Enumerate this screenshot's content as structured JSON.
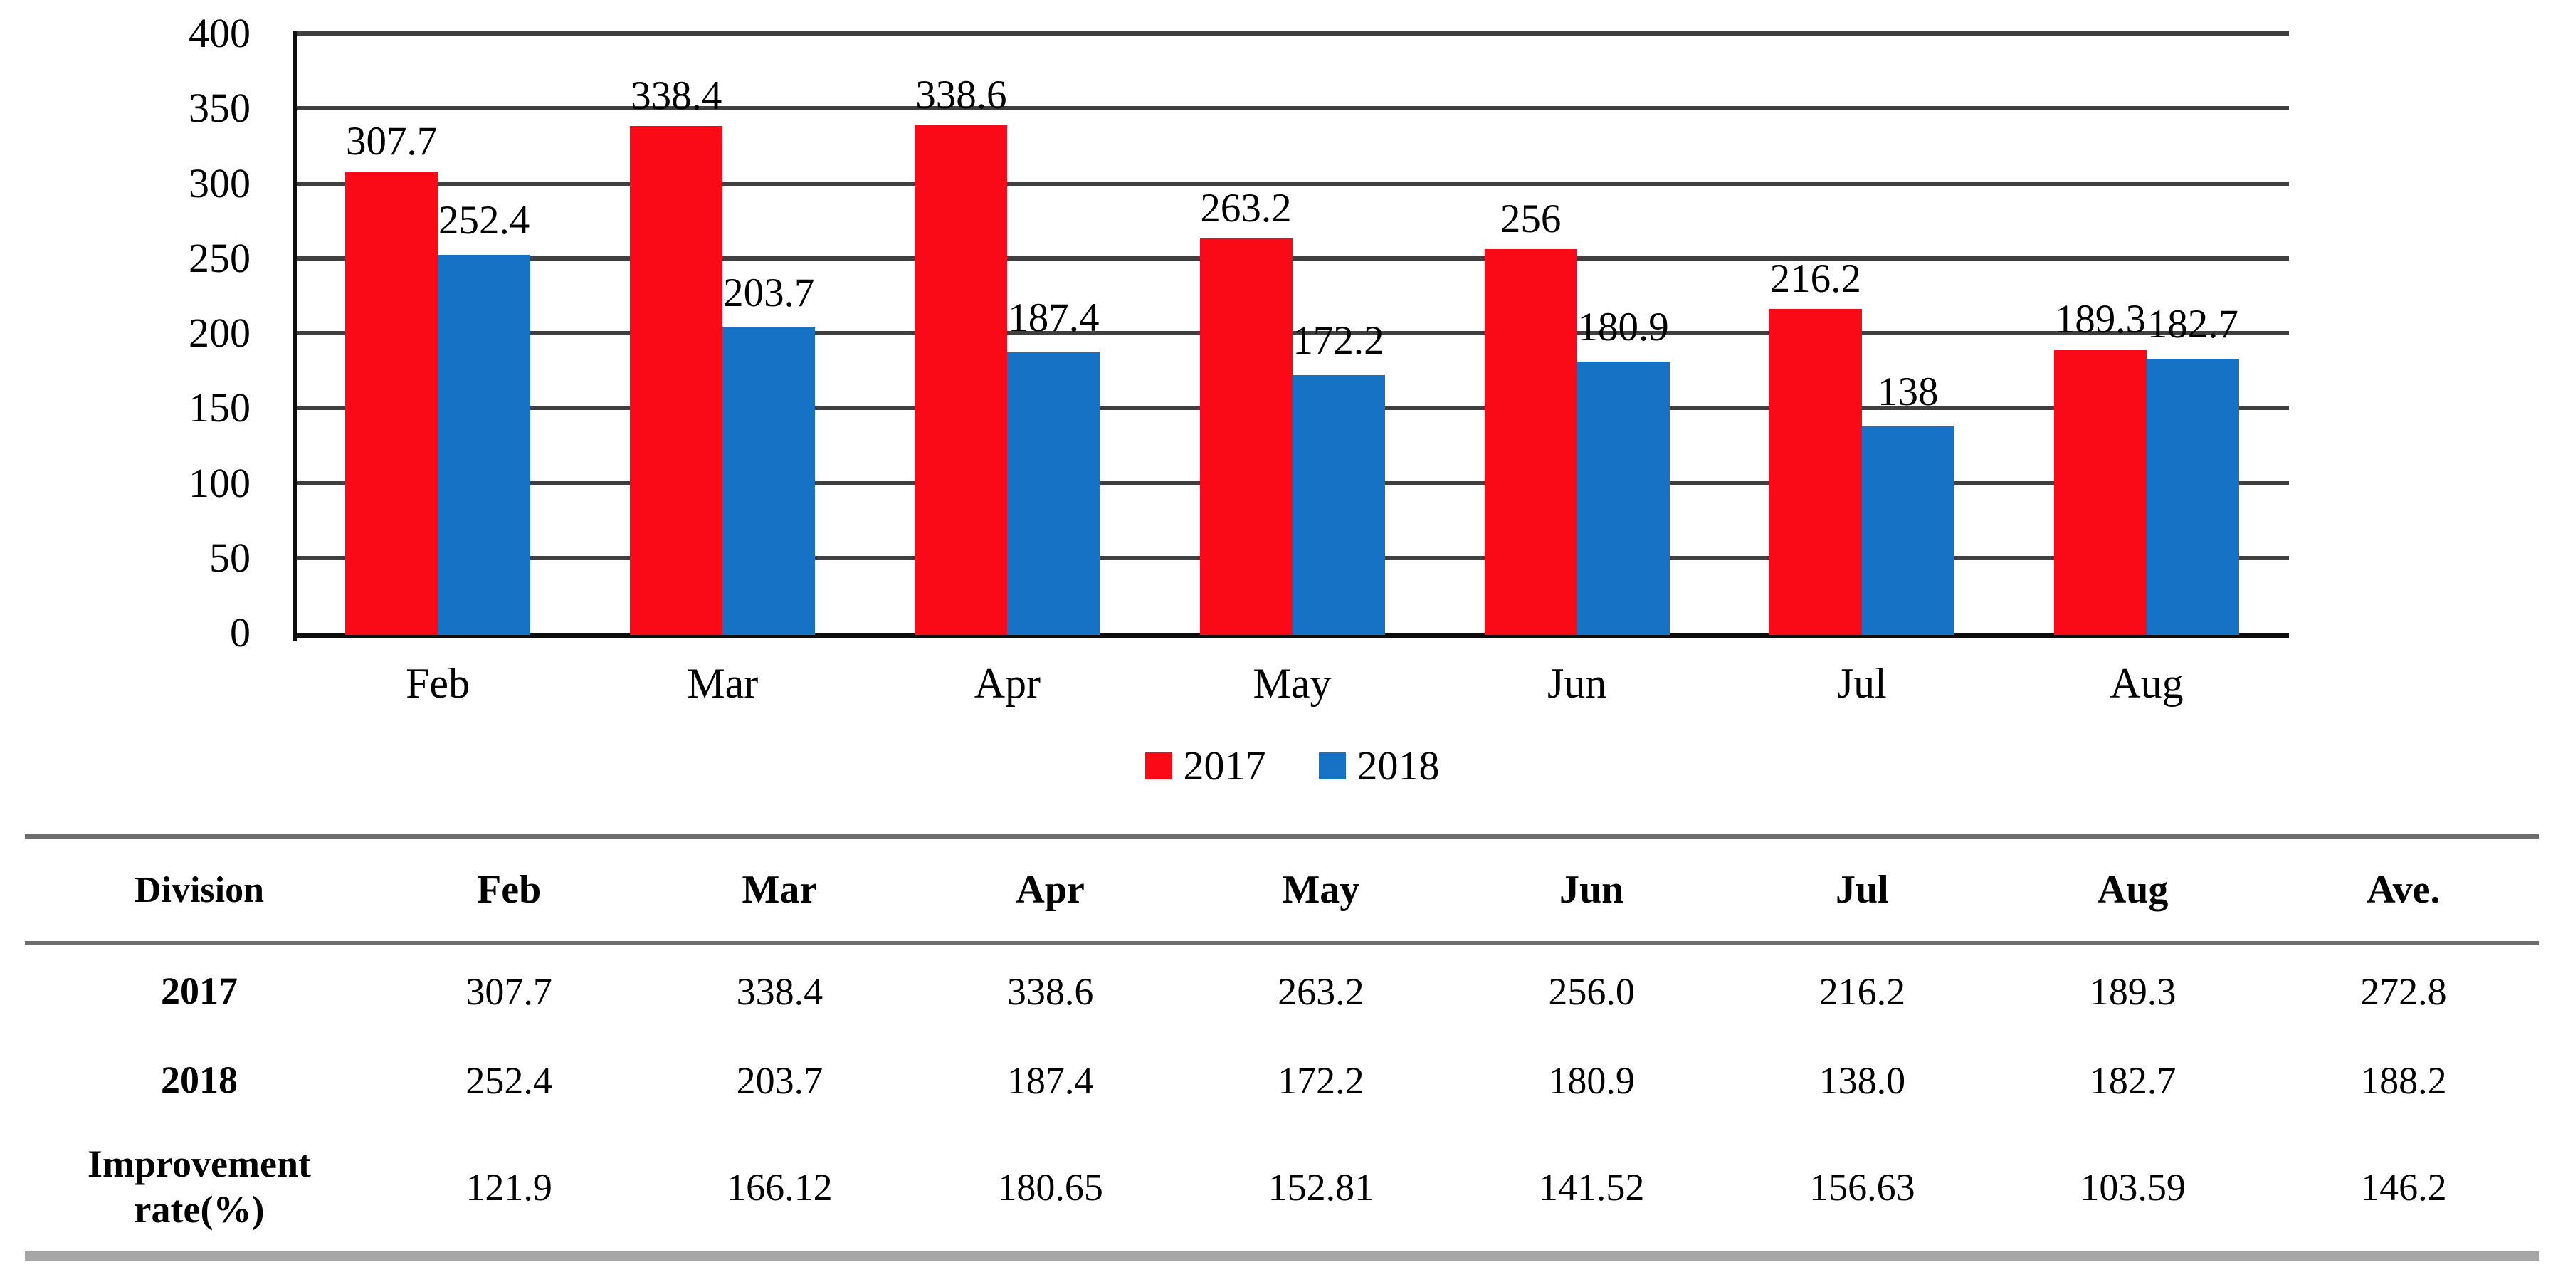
{
  "chart_data": {
    "type": "bar",
    "title": "",
    "xlabel": "",
    "ylabel": "",
    "categories": [
      "Feb",
      "Mar",
      "Apr",
      "May",
      "Jun",
      "Jul",
      "Aug"
    ],
    "series": [
      {
        "name": "2017",
        "color": "#fa0a16",
        "values": [
          307.7,
          338.4,
          338.6,
          263.2,
          256,
          216.2,
          189.3
        ],
        "labels": [
          "307.7",
          "338.4",
          "338.6",
          "263.2",
          "256",
          "216.2",
          "189.3"
        ]
      },
      {
        "name": "2018",
        "color": "#1572c4",
        "values": [
          252.4,
          203.7,
          187.4,
          172.2,
          180.9,
          138,
          182.7
        ],
        "labels": [
          "252.4",
          "203.7",
          "187.4",
          "172.2",
          "180.9",
          "138",
          "182.7"
        ]
      }
    ],
    "ylim": [
      0,
      400
    ],
    "yticks": [
      0,
      50,
      100,
      150,
      200,
      250,
      300,
      350,
      400
    ],
    "grid": true,
    "legend_position": "bottom-center"
  },
  "table": {
    "header": [
      "Division",
      "Feb",
      "Mar",
      "Apr",
      "May",
      "Jun",
      "Jul",
      "Aug",
      "Ave."
    ],
    "rows": [
      {
        "label": "2017",
        "values": [
          "307.7",
          "338.4",
          "338.6",
          "263.2",
          "256.0",
          "216.2",
          "189.3",
          "272.8"
        ]
      },
      {
        "label": "2018",
        "values": [
          "252.4",
          "203.7",
          "187.4",
          "172.2",
          "180.9",
          "138.0",
          "182.7",
          "188.2"
        ]
      },
      {
        "label": "Improvement rate(%)",
        "values": [
          "121.9",
          "166.12",
          "180.65",
          "152.81",
          "141.52",
          "156.63",
          "103.59",
          "146.2"
        ]
      }
    ]
  }
}
